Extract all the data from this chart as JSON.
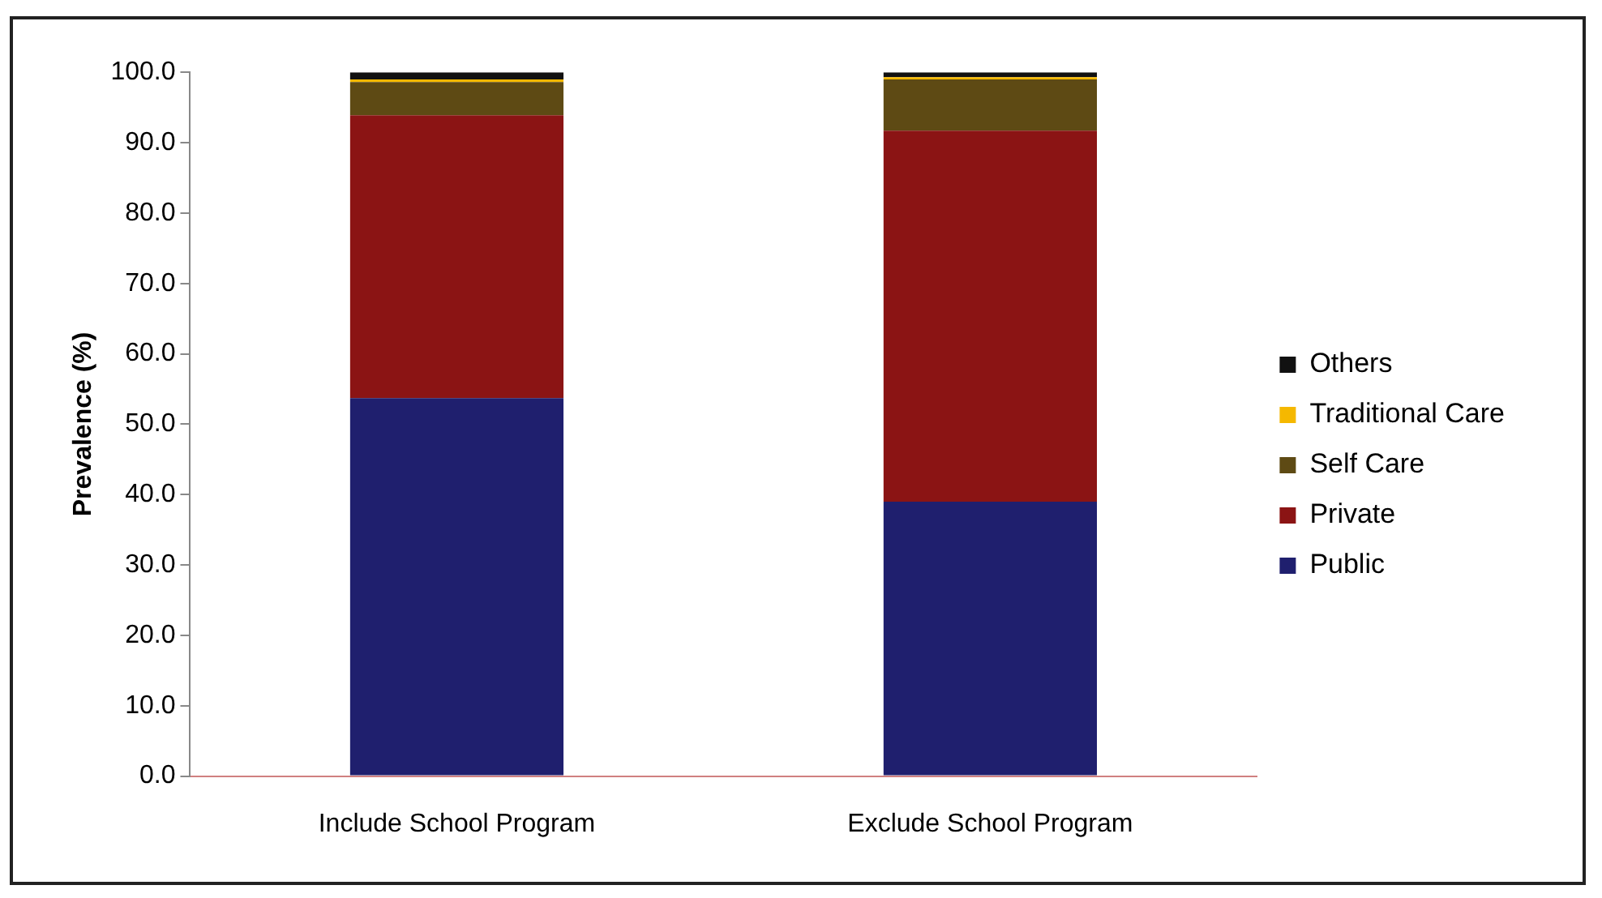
{
  "chart_data": {
    "type": "bar",
    "stacked": true,
    "ylabel": "Prevalence (%)",
    "categories": [
      "Include School Program",
      "Exclude School Program"
    ],
    "series": [
      {
        "name": "Public",
        "color": "#1f1f6e",
        "values": [
          53.7,
          39.0
        ]
      },
      {
        "name": "Private",
        "color": "#8b1414",
        "values": [
          40.2,
          52.7
        ]
      },
      {
        "name": "Self Care",
        "color": "#5e4a14",
        "values": [
          4.7,
          7.3
        ]
      },
      {
        "name": "Traditional Care",
        "color": "#f5b800",
        "values": [
          0.4,
          0.3
        ]
      },
      {
        "name": "Others",
        "color": "#111111",
        "values": [
          1.0,
          0.7
        ]
      }
    ],
    "ylim": [
      0,
      100
    ],
    "yticks": [
      {
        "value": 0,
        "label": "0.0"
      },
      {
        "value": 10,
        "label": "10.0"
      },
      {
        "value": 20,
        "label": "20.0"
      },
      {
        "value": 30,
        "label": "30.0"
      },
      {
        "value": 40,
        "label": "40.0"
      },
      {
        "value": 50,
        "label": "50.0"
      },
      {
        "value": 60,
        "label": "60.0"
      },
      {
        "value": 70,
        "label": "70.0"
      },
      {
        "value": 80,
        "label": "80.0"
      },
      {
        "value": 90,
        "label": "90.0"
      },
      {
        "value": 100,
        "label": "100.0"
      }
    ],
    "grid": false,
    "legend": "right"
  }
}
